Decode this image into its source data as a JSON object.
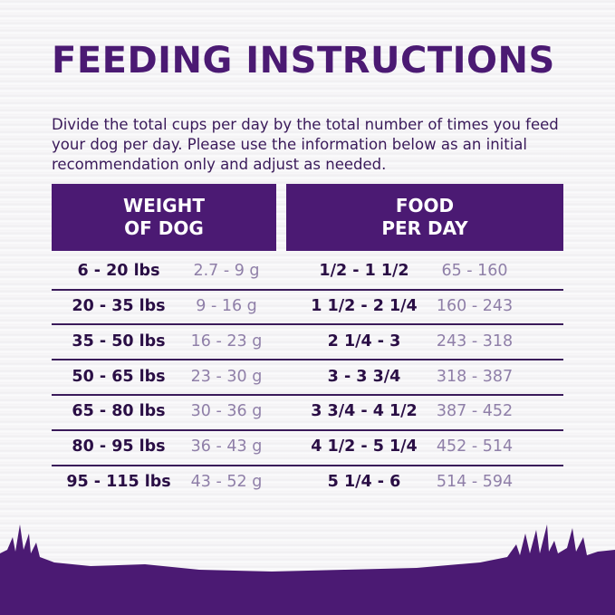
{
  "title": "FEEDING INSTRUCTIONS",
  "intro": "Divide the total cups per day by the total number of times you feed your dog per day. Please use the information below as an initial recommendation only and adjust as needed.",
  "headers": {
    "weight": "WEIGHT\nOF DOG",
    "food": "FOOD\nPER DAY"
  },
  "rows": [
    {
      "lbs": "6 - 20 lbs",
      "kg": "2.7 - 9 g",
      "cups": "1/2 - 1 1/2",
      "grams": "65 - 160"
    },
    {
      "lbs": "20 - 35 lbs",
      "kg": "9 - 16 g",
      "cups": "1 1/2 - 2 1/4",
      "grams": "160 - 243"
    },
    {
      "lbs": "35 - 50 lbs",
      "kg": "16 - 23 g",
      "cups": "2 1/4 - 3",
      "grams": "243 - 318"
    },
    {
      "lbs": "50 - 65 lbs",
      "kg": "23 - 30 g",
      "cups": "3 - 3 3/4",
      "grams": "318 - 387"
    },
    {
      "lbs": "65 - 80 lbs",
      "kg": "30 - 36 g",
      "cups": "3 3/4 - 4 1/2",
      "grams": "387 - 452"
    },
    {
      "lbs": "80 - 95 lbs",
      "kg": "36 - 43 g",
      "cups": "4 1/2 - 5 1/4",
      "grams": "452 - 514"
    },
    {
      "lbs": "95 - 115 lbs",
      "kg": "43 - 52 g",
      "cups": "5 1/4 - 6",
      "grams": "514 - 594"
    }
  ],
  "colors": {
    "brand_purple": "#4b1a73",
    "primary_text": "#2a0e45",
    "secondary_text": "#8f7fa8"
  }
}
